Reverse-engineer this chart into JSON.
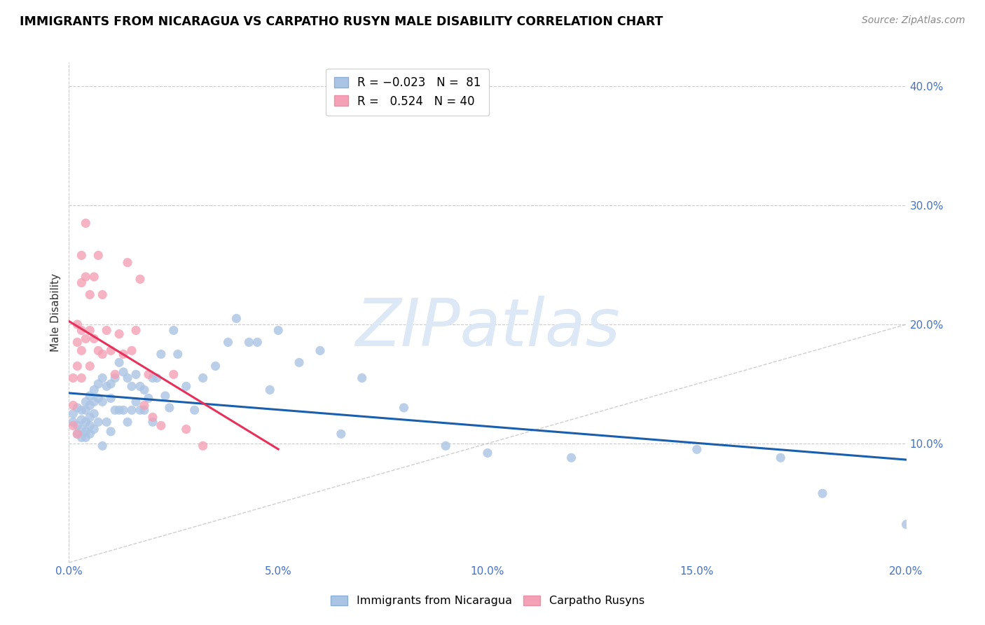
{
  "title": "IMMIGRANTS FROM NICARAGUA VS CARPATHO RUSYN MALE DISABILITY CORRELATION CHART",
  "source": "Source: ZipAtlas.com",
  "xlabel": "Immigrants from Nicaragua",
  "ylabel": "Male Disability",
  "xlim": [
    0.0,
    0.2
  ],
  "ylim": [
    0.0,
    0.42
  ],
  "xticks": [
    0.0,
    0.05,
    0.1,
    0.15,
    0.2
  ],
  "yticks": [
    0.1,
    0.2,
    0.3,
    0.4
  ],
  "xtick_labels": [
    "0.0%",
    "5.0%",
    "10.0%",
    "15.0%",
    "20.0%"
  ],
  "ytick_labels": [
    "10.0%",
    "20.0%",
    "30.0%",
    "40.0%"
  ],
  "blue_color": "#aac4e4",
  "pink_color": "#f4a0b5",
  "line_blue": "#1a5fad",
  "line_pink": "#e8305a",
  "tick_color": "#4472c4",
  "watermark": "ZIPatlas",
  "watermark_color": "#dce8f5",
  "blue_x": [
    0.001,
    0.001,
    0.002,
    0.002,
    0.002,
    0.003,
    0.003,
    0.003,
    0.003,
    0.004,
    0.004,
    0.004,
    0.004,
    0.004,
    0.005,
    0.005,
    0.005,
    0.005,
    0.005,
    0.006,
    0.006,
    0.006,
    0.006,
    0.007,
    0.007,
    0.007,
    0.008,
    0.008,
    0.008,
    0.009,
    0.009,
    0.01,
    0.01,
    0.01,
    0.011,
    0.011,
    0.012,
    0.012,
    0.013,
    0.013,
    0.014,
    0.014,
    0.015,
    0.015,
    0.016,
    0.016,
    0.017,
    0.017,
    0.018,
    0.018,
    0.019,
    0.02,
    0.02,
    0.021,
    0.022,
    0.023,
    0.024,
    0.025,
    0.026,
    0.028,
    0.03,
    0.032,
    0.035,
    0.038,
    0.04,
    0.043,
    0.045,
    0.048,
    0.05,
    0.055,
    0.06,
    0.065,
    0.07,
    0.08,
    0.09,
    0.1,
    0.12,
    0.15,
    0.17,
    0.18,
    0.2
  ],
  "blue_y": [
    0.125,
    0.118,
    0.13,
    0.115,
    0.108,
    0.128,
    0.12,
    0.112,
    0.105,
    0.135,
    0.128,
    0.118,
    0.11,
    0.105,
    0.14,
    0.132,
    0.122,
    0.115,
    0.108,
    0.145,
    0.135,
    0.125,
    0.112,
    0.15,
    0.138,
    0.118,
    0.155,
    0.135,
    0.098,
    0.148,
    0.118,
    0.15,
    0.138,
    0.11,
    0.155,
    0.128,
    0.168,
    0.128,
    0.16,
    0.128,
    0.155,
    0.118,
    0.148,
    0.128,
    0.158,
    0.135,
    0.148,
    0.128,
    0.145,
    0.128,
    0.138,
    0.155,
    0.118,
    0.155,
    0.175,
    0.14,
    0.13,
    0.195,
    0.175,
    0.148,
    0.128,
    0.155,
    0.165,
    0.185,
    0.205,
    0.185,
    0.185,
    0.145,
    0.195,
    0.168,
    0.178,
    0.108,
    0.155,
    0.13,
    0.098,
    0.092,
    0.088,
    0.095,
    0.088,
    0.058,
    0.032
  ],
  "pink_x": [
    0.001,
    0.001,
    0.001,
    0.002,
    0.002,
    0.002,
    0.002,
    0.003,
    0.003,
    0.003,
    0.003,
    0.003,
    0.004,
    0.004,
    0.004,
    0.005,
    0.005,
    0.005,
    0.006,
    0.006,
    0.007,
    0.007,
    0.008,
    0.008,
    0.009,
    0.01,
    0.011,
    0.012,
    0.013,
    0.014,
    0.015,
    0.016,
    0.017,
    0.018,
    0.019,
    0.02,
    0.022,
    0.025,
    0.028,
    0.032
  ],
  "pink_y": [
    0.155,
    0.132,
    0.115,
    0.2,
    0.185,
    0.165,
    0.108,
    0.258,
    0.235,
    0.195,
    0.178,
    0.155,
    0.285,
    0.24,
    0.188,
    0.225,
    0.195,
    0.165,
    0.24,
    0.188,
    0.258,
    0.178,
    0.225,
    0.175,
    0.195,
    0.178,
    0.158,
    0.192,
    0.175,
    0.252,
    0.178,
    0.195,
    0.238,
    0.132,
    0.158,
    0.122,
    0.115,
    0.158,
    0.112,
    0.098
  ]
}
